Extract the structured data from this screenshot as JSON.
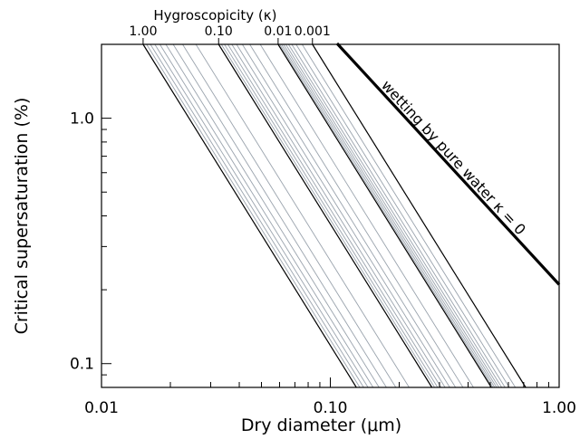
{
  "chart_data": {
    "type": "line",
    "xlabel": "Dry diameter (μm)",
    "ylabel": "Critical supersaturation (%)",
    "x_scale": "log",
    "y_scale": "log",
    "xlim": [
      0.01,
      1.0
    ],
    "ylim": [
      0.08,
      2.0
    ],
    "x_ticks": [
      {
        "value": 0.01,
        "label": "0.01"
      },
      {
        "value": 0.1,
        "label": "0.10"
      },
      {
        "value": 1.0,
        "label": "1.00"
      }
    ],
    "y_ticks": [
      {
        "value": 0.1,
        "label": "0.1"
      },
      {
        "value": 1.0,
        "label": "1.0"
      }
    ],
    "top_axis": {
      "title": "Hygroscopicity (κ)",
      "ticks": [
        {
          "value": 1.0,
          "label": "1.00"
        },
        {
          "value": 0.1,
          "label": "0.10"
        },
        {
          "value": 0.01,
          "label": "0.01"
        },
        {
          "value": 0.001,
          "label": "0.001"
        }
      ]
    },
    "kappa_lines": {
      "note_relation": "log-log lines with slope -1.5",
      "decades": [
        {
          "start": 1.0,
          "end": 0.1,
          "intermediate": [
            0.9,
            0.8,
            0.7,
            0.6,
            0.5,
            0.4,
            0.3,
            0.2
          ]
        },
        {
          "start": 0.1,
          "end": 0.01,
          "intermediate": [
            0.09,
            0.08,
            0.07,
            0.06,
            0.05,
            0.04,
            0.03,
            0.02
          ]
        },
        {
          "start": 0.01,
          "end": 0.001,
          "intermediate": [
            0.009,
            0.008,
            0.007,
            0.006,
            0.005,
            0.004,
            0.003,
            0.002
          ]
        }
      ],
      "major_values": [
        1.0,
        0.1,
        0.01,
        0.001
      ],
      "major_color": "#000000",
      "minor_color": "#9aa3ad"
    },
    "pure_water_line": {
      "label": "wetting by pure water κ = 0",
      "points": [
        [
          0.107,
          2.0
        ],
        [
          1.0,
          0.21
        ]
      ],
      "color": "#000000"
    },
    "grid": false
  }
}
